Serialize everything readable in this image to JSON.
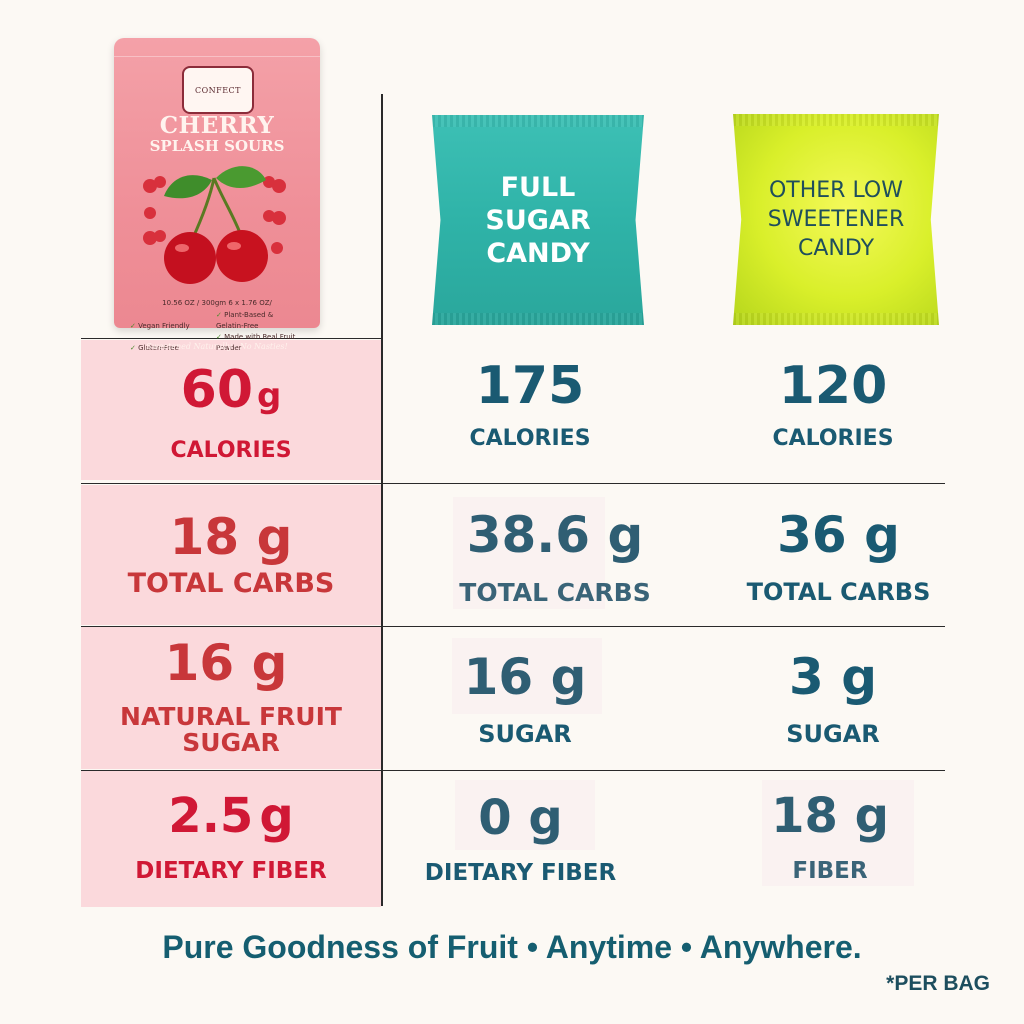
{
  "pouch": {
    "brand_badge": "CONFECT",
    "title_line1": "CHERRY",
    "title_line2": "SPLASH SOURS",
    "size_text": "10.56 OZ / 300gm    6 x 1.76 OZ/",
    "claims": [
      "Vegan Friendly",
      "Plant-Based & Gelatin-Free",
      "Gluten-Free",
      "Made with Real Fruit Powder"
    ],
    "tagline": "Sweetened Naturally - No Nasties!"
  },
  "packs": {
    "full_sugar": "FULL SUGAR CANDY",
    "other_low": "OTHER LOW SWEETENER CANDY"
  },
  "rows": [
    {
      "cherry": {
        "value": "60",
        "unit": "g",
        "label": "CALORIES"
      },
      "full": {
        "value": "175",
        "unit": "",
        "label": "CALORIES"
      },
      "other": {
        "value": "120",
        "unit": "",
        "label": "CALORIES"
      }
    },
    {
      "cherry": {
        "value": "18",
        "unit": "g",
        "label": "TOTAL CARBS"
      },
      "full": {
        "value": "38.6",
        "unit": "g",
        "label": "TOTAL CARBS"
      },
      "other": {
        "value": "36",
        "unit": "g",
        "label": "TOTAL CARBS"
      }
    },
    {
      "cherry": {
        "value": "16",
        "unit": "g",
        "label": "NATURAL FRUIT SUGAR"
      },
      "full": {
        "value": "16",
        "unit": "g",
        "label": "SUGAR"
      },
      "other": {
        "value": "3",
        "unit": "g",
        "label": "SUGAR"
      }
    },
    {
      "cherry": {
        "value": "2.5",
        "unit": "g",
        "label": "DIETARY FIBER"
      },
      "full": {
        "value": "0",
        "unit": "g",
        "label": "DIETARY FIBER"
      },
      "other": {
        "value": "18",
        "unit": "g",
        "label": "FIBER"
      }
    }
  ],
  "footer": {
    "slogan": "Pure Goodness of Fruit • Anytime • Anywhere.",
    "note": "*PER BAG"
  },
  "colors": {
    "background": "#fcf9f4",
    "pink_cell": "#fbd9dc",
    "cherry_red": "#d01835",
    "teal_text": "#1a5a72",
    "full_sugar_pack": "#2fb3a8",
    "low_sweetener_pack": "#d9ef2a"
  }
}
